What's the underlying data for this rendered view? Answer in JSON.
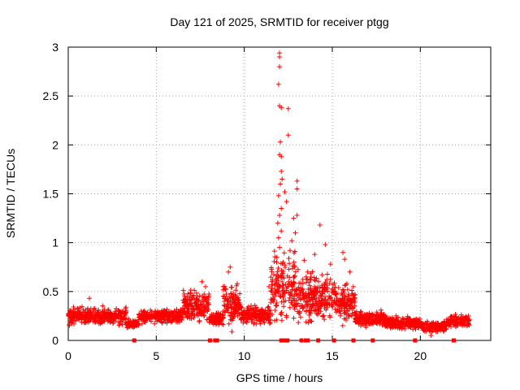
{
  "chart_data": {
    "type": "scatter",
    "title": "Day 121 of 2025, SRMTID for receiver ptgg",
    "xlabel": "GPS time / hours",
    "ylabel": "SRMTID / TECUs",
    "xlim": [
      0,
      24
    ],
    "ylim": [
      0,
      3
    ],
    "xticks": [
      {
        "value": 0,
        "label": "0"
      },
      {
        "value": 5,
        "label": "5"
      },
      {
        "value": 10,
        "label": "10"
      },
      {
        "value": 15,
        "label": "15"
      },
      {
        "value": 20,
        "label": "20"
      }
    ],
    "yticks": [
      {
        "value": 0,
        "label": "0"
      },
      {
        "value": 0.5,
        "label": "0.5"
      },
      {
        "value": 1,
        "label": "1"
      },
      {
        "value": 1.5,
        "label": "1.5"
      },
      {
        "value": 2,
        "label": "2"
      },
      {
        "value": 2.5,
        "label": "2.5"
      },
      {
        "value": 3,
        "label": "3"
      }
    ],
    "grid": true,
    "marker": "+",
    "color": "#ff0000",
    "series": [
      {
        "name": "SRMTID",
        "segments": [
          {
            "x0": 0.0,
            "x1": 3.3,
            "base": 0.25,
            "spread": 0.12
          },
          {
            "x0": 3.3,
            "x1": 4.0,
            "base": 0.17,
            "spread": 0.06
          },
          {
            "x0": 4.0,
            "x1": 6.5,
            "base": 0.25,
            "spread": 0.1
          },
          {
            "x0": 6.5,
            "x1": 8.0,
            "base": 0.35,
            "spread": 0.2
          },
          {
            "x0": 8.0,
            "x1": 8.8,
            "base": 0.22,
            "spread": 0.08
          },
          {
            "x0": 8.8,
            "x1": 9.8,
            "base": 0.38,
            "spread": 0.25
          },
          {
            "x0": 9.8,
            "x1": 11.5,
            "base": 0.26,
            "spread": 0.12
          },
          {
            "x0": 11.5,
            "x1": 12.9,
            "base": 0.55,
            "spread": 0.45
          },
          {
            "x0": 12.9,
            "x1": 13.8,
            "base": 0.45,
            "spread": 0.35
          },
          {
            "x0": 13.8,
            "x1": 15.2,
            "base": 0.45,
            "spread": 0.3
          },
          {
            "x0": 15.2,
            "x1": 16.3,
            "base": 0.38,
            "spread": 0.25
          },
          {
            "x0": 16.3,
            "x1": 18.0,
            "base": 0.22,
            "spread": 0.1
          },
          {
            "x0": 18.0,
            "x1": 20.0,
            "base": 0.18,
            "spread": 0.08
          },
          {
            "x0": 20.0,
            "x1": 21.5,
            "base": 0.14,
            "spread": 0.07
          },
          {
            "x0": 21.5,
            "x1": 22.8,
            "base": 0.2,
            "spread": 0.08
          }
        ],
        "outliers": [
          {
            "x": 12.0,
            "y": 2.94
          },
          {
            "x": 12.0,
            "y": 2.9
          },
          {
            "x": 12.0,
            "y": 2.8
          },
          {
            "x": 11.95,
            "y": 2.62
          },
          {
            "x": 12.0,
            "y": 2.4
          },
          {
            "x": 12.1,
            "y": 2.38
          },
          {
            "x": 12.5,
            "y": 2.37
          },
          {
            "x": 12.5,
            "y": 2.1
          },
          {
            "x": 12.05,
            "y": 2.03
          },
          {
            "x": 12.0,
            "y": 1.9
          },
          {
            "x": 12.1,
            "y": 1.88
          },
          {
            "x": 12.1,
            "y": 1.73
          },
          {
            "x": 12.15,
            "y": 1.65
          },
          {
            "x": 13.0,
            "y": 1.63
          },
          {
            "x": 12.05,
            "y": 1.6
          },
          {
            "x": 13.0,
            "y": 1.55
          },
          {
            "x": 12.3,
            "y": 1.52
          },
          {
            "x": 11.95,
            "y": 1.48
          },
          {
            "x": 12.4,
            "y": 1.42
          },
          {
            "x": 12.1,
            "y": 1.35
          },
          {
            "x": 12.0,
            "y": 1.28
          },
          {
            "x": 13.0,
            "y": 1.28
          },
          {
            "x": 12.8,
            "y": 1.25
          },
          {
            "x": 11.9,
            "y": 1.2
          },
          {
            "x": 14.3,
            "y": 1.18
          },
          {
            "x": 12.1,
            "y": 1.12
          },
          {
            "x": 12.9,
            "y": 1.1
          },
          {
            "x": 11.95,
            "y": 1.05
          },
          {
            "x": 12.7,
            "y": 1.02
          },
          {
            "x": 12.0,
            "y": 0.95
          },
          {
            "x": 14.6,
            "y": 0.98
          },
          {
            "x": 12.6,
            "y": 0.92
          },
          {
            "x": 15.6,
            "y": 0.9
          },
          {
            "x": 11.85,
            "y": 0.85
          },
          {
            "x": 13.4,
            "y": 0.82
          },
          {
            "x": 14.0,
            "y": 0.88
          },
          {
            "x": 12.2,
            "y": 0.8
          },
          {
            "x": 15.7,
            "y": 0.83
          },
          {
            "x": 14.9,
            "y": 0.78
          },
          {
            "x": 12.85,
            "y": 0.75
          },
          {
            "x": 13.6,
            "y": 0.7
          },
          {
            "x": 9.2,
            "y": 0.75
          },
          {
            "x": 9.1,
            "y": 0.7
          },
          {
            "x": 16.0,
            "y": 0.7
          },
          {
            "x": 7.6,
            "y": 0.6
          },
          {
            "x": 7.8,
            "y": 0.55
          },
          {
            "x": 9.6,
            "y": 0.58
          },
          {
            "x": 11.4,
            "y": 0.55
          },
          {
            "x": 1.2,
            "y": 0.43
          },
          {
            "x": 9.3,
            "y": 0.09
          },
          {
            "x": 20.6,
            "y": 0.05
          }
        ],
        "zero_points": [
          3.75,
          8.05,
          8.35,
          8.45,
          12.1,
          12.3,
          12.45,
          13.25,
          13.5,
          13.6,
          14.2,
          15.1,
          16.2,
          17.3,
          19.7,
          21.9
        ]
      }
    ]
  }
}
